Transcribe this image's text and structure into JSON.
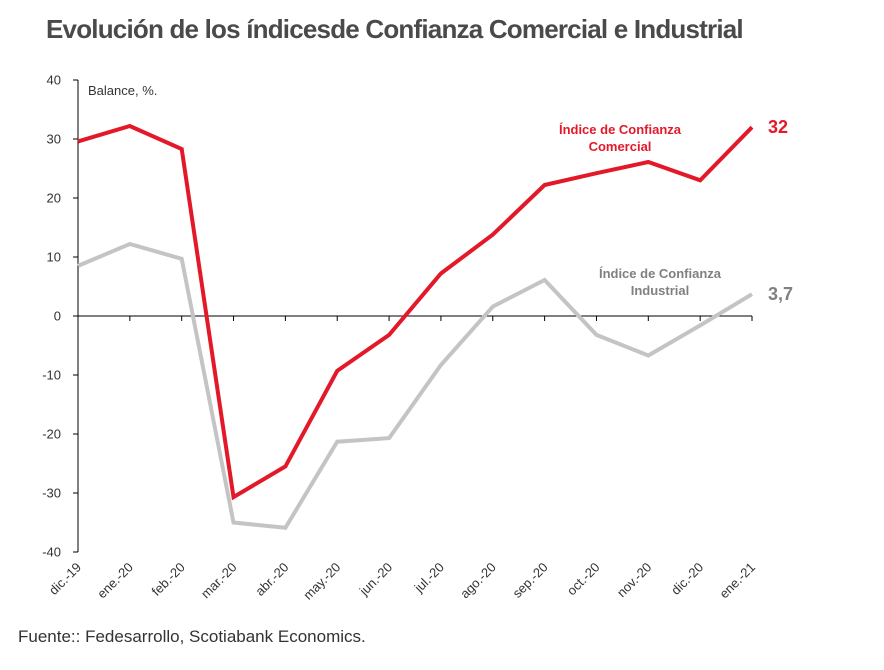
{
  "title": "Evolución de los índicesde Confianza Comercial e Industrial",
  "source": "Fuente:: Fedesarrollo, Scotiabank Economics.",
  "chart_data": {
    "type": "line",
    "ylabel": "Balance, %.",
    "ylim": [
      -40,
      40
    ],
    "yticks": [
      "40",
      "30",
      "20",
      "10",
      "0",
      "-10",
      "-20",
      "-30",
      "-40"
    ],
    "categories": [
      "dic.-19",
      "ene.-20",
      "feb.-20",
      "mar.-20",
      "abr.-20",
      "may.-20",
      "jun.-20",
      "jul.-20",
      "ago.-20",
      "sep.-20",
      "oct.-20",
      "nov.-20",
      "dic.-20",
      "ene.-21"
    ],
    "series": [
      {
        "name_line1": "Índice de Confianza",
        "name_line2": "Comercial",
        "color": "#e3192a",
        "values": [
          29.6,
          32.2,
          28.3,
          -30.7,
          -25.5,
          -9.3,
          -3.2,
          7.2,
          13.8,
          22.2,
          24.2,
          26.1,
          23.0,
          32.0
        ],
        "end_label": "32"
      },
      {
        "name_line1": "Índice de Confianza",
        "name_line2": "Industrial",
        "color": "#c4c4c4",
        "values": [
          8.5,
          12.2,
          9.7,
          -35.0,
          -35.9,
          -21.3,
          -20.7,
          -8.3,
          1.6,
          6.1,
          -3.2,
          -6.7,
          -1.6,
          3.7
        ],
        "end_label": "3,7"
      }
    ],
    "grid": false,
    "legend": "inline labels near lines"
  }
}
